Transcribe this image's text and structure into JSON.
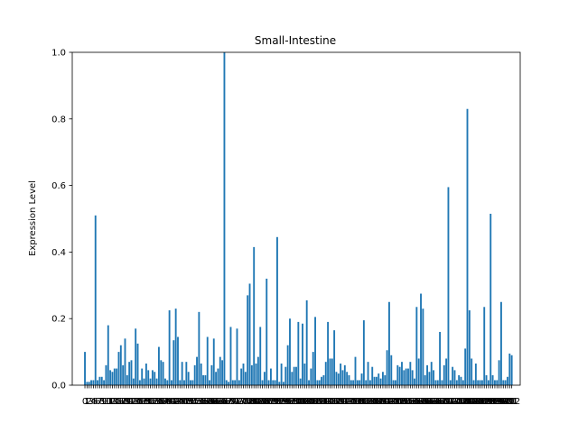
{
  "chart_data": {
    "type": "bar",
    "title": "Small-Intestine",
    "xlabel": "",
    "ylabel": "Expression Level",
    "ylim": [
      0,
      1.0
    ],
    "yticks": [
      "0.0",
      "0.2",
      "0.4",
      "0.6",
      "0.8",
      "1.0"
    ],
    "xlim": [
      -6,
      206
    ],
    "bar_color": "#1f77b4",
    "grid": false,
    "values": [
      0.1,
      0.01,
      0.01,
      0.015,
      0.015,
      0.51,
      0.015,
      0.025,
      0.025,
      0.015,
      0.06,
      0.18,
      0.045,
      0.04,
      0.05,
      0.05,
      0.1,
      0.12,
      0.06,
      0.14,
      0.03,
      0.07,
      0.075,
      0.02,
      0.17,
      0.125,
      0.015,
      0.05,
      0.02,
      0.065,
      0.045,
      0.02,
      0.045,
      0.04,
      0.02,
      0.115,
      0.075,
      0.07,
      0.02,
      0.015,
      0.225,
      0.015,
      0.135,
      0.23,
      0.145,
      0.015,
      0.07,
      0.015,
      0.07,
      0.04,
      0.015,
      0.015,
      0.06,
      0.085,
      0.22,
      0.065,
      0.03,
      0.03,
      0.145,
      0.015,
      0.06,
      0.14,
      0.04,
      0.05,
      0.085,
      0.075,
      1.0,
      0.015,
      0.01,
      0.175,
      0.015,
      0.015,
      0.17,
      0.015,
      0.05,
      0.065,
      0.04,
      0.27,
      0.305,
      0.06,
      0.415,
      0.065,
      0.085,
      0.175,
      0.015,
      0.04,
      0.32,
      0.015,
      0.05,
      0.015,
      0.015,
      0.445,
      0.01,
      0.065,
      0.01,
      0.055,
      0.12,
      0.2,
      0.04,
      0.055,
      0.055,
      0.19,
      0.02,
      0.185,
      0.065,
      0.255,
      0.015,
      0.05,
      0.1,
      0.205,
      0.015,
      0.015,
      0.025,
      0.03,
      0.07,
      0.19,
      0.08,
      0.08,
      0.165,
      0.04,
      0.035,
      0.065,
      0.045,
      0.06,
      0.04,
      0.03,
      0.015,
      0.015,
      0.085,
      0.015,
      0.015,
      0.035,
      0.195,
      0.015,
      0.07,
      0.015,
      0.055,
      0.025,
      0.025,
      0.035,
      0.02,
      0.04,
      0.03,
      0.105,
      0.25,
      0.09,
      0.015,
      0.015,
      0.06,
      0.055,
      0.07,
      0.045,
      0.05,
      0.05,
      0.07,
      0.045,
      0.02,
      0.235,
      0.08,
      0.275,
      0.23,
      0.03,
      0.06,
      0.04,
      0.07,
      0.045,
      0.015,
      0.015,
      0.16,
      0.015,
      0.06,
      0.08,
      0.595,
      0.015,
      0.055,
      0.045,
      0.015,
      0.03,
      0.025,
      0.015,
      0.11,
      0.83,
      0.225,
      0.08,
      0.015,
      0.065,
      0.015,
      0.015,
      0.015,
      0.235,
      0.03,
      0.015,
      0.515,
      0.03,
      0.015,
      0.015,
      0.075,
      0.25,
      0.015,
      0.015,
      0.025,
      0.095,
      0.09
    ]
  }
}
